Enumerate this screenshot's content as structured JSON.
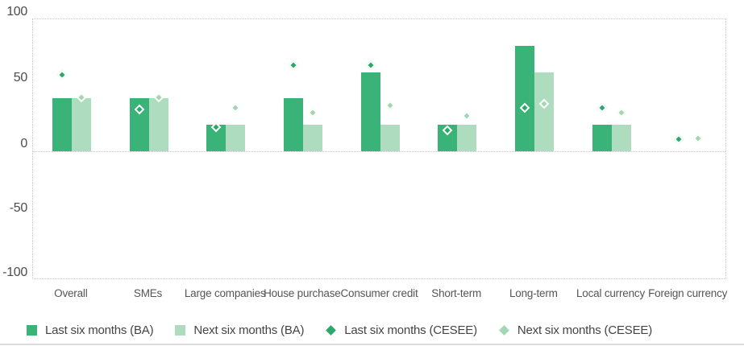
{
  "chart_data": {
    "type": "bar",
    "title": "",
    "xlabel": "",
    "ylabel": "",
    "ylim": [
      -100,
      100
    ],
    "yticks": [
      100,
      50,
      0,
      -50,
      -100
    ],
    "gridlines_at": [
      100,
      0,
      -100
    ],
    "grid_style": "dotted light-gray horizontal lines at 100, 0 and -100; dotted plot border on all four sides",
    "legend_position": "bottom",
    "categories": [
      "Overall",
      "SMEs",
      "Large companies",
      "House purchase",
      "Consumer credit",
      "Short-term",
      "Long-term",
      "Local currency",
      "Foreign currency"
    ],
    "series": [
      {
        "name": "Last six months (BA)",
        "marker": "bar",
        "color": "#39b377",
        "values": [
          40,
          40,
          20,
          40,
          60,
          20,
          80,
          20,
          0
        ]
      },
      {
        "name": "Next six months (BA)",
        "marker": "bar",
        "color": "#aedcbe",
        "values": [
          40,
          40,
          20,
          20,
          20,
          20,
          60,
          20,
          0
        ]
      },
      {
        "name": "Last six months (CESEE)",
        "marker": "diamond",
        "color": "#2ba86b",
        "values": [
          58,
          32,
          18,
          65,
          65,
          16,
          33,
          33,
          9
        ]
      },
      {
        "name": "Next six months (CESEE)",
        "marker": "diamond",
        "color": "#a2d6b4",
        "values": [
          41,
          41,
          33,
          29,
          35,
          27,
          36,
          29,
          10
        ]
      }
    ]
  },
  "colors": {
    "bar_dark_green": "#39b377",
    "bar_light_green": "#aedcbe",
    "diamond_dark_green": "#2ba86b",
    "diamond_light_green": "#a2d6b4",
    "diamond_stroke": "#ffffff",
    "grid_dotted": "#c9c9c9",
    "axis_text": "#4d4d4d",
    "category_text": "#555555",
    "legend_text": "#444444",
    "bottom_divider": "#dcdcdc",
    "background": "#ffffff"
  }
}
